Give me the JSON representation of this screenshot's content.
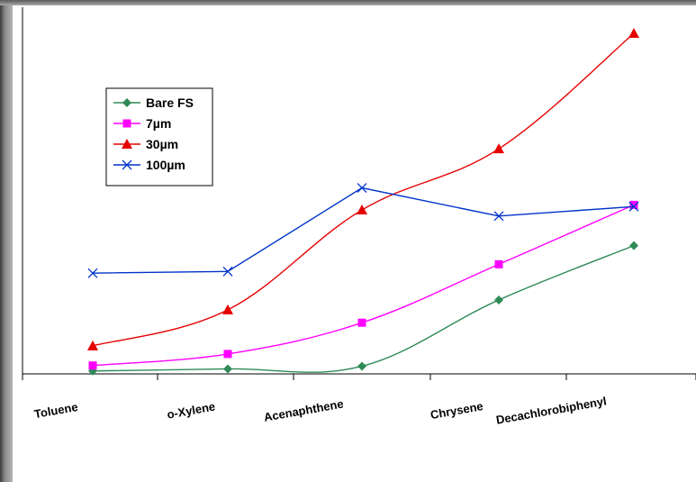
{
  "chart_data": {
    "type": "line",
    "categories": [
      "Toluene",
      "o-Xylene",
      "Acenaphthene",
      "Chrysene",
      "Decachlorobiphenyl"
    ],
    "series": [
      {
        "name": "Bare FS",
        "color": "#2e8b57",
        "marker": "diamond",
        "values": [
          0.6,
          1.2,
          2.0,
          21.5,
          37.5
        ]
      },
      {
        "name": "7µm",
        "color": "#ff00ff",
        "marker": "square",
        "values": [
          2.2,
          5.6,
          14.8,
          32.0,
          49.5
        ]
      },
      {
        "name": "30µm",
        "color": "#e60000",
        "marker": "triangle",
        "values": [
          8.0,
          18.6,
          48.0,
          66.0,
          100.0
        ]
      },
      {
        "name": "100µm",
        "color": "#0033cc",
        "marker": "x",
        "values": [
          29.4,
          29.9,
          54.5,
          46.2,
          49.0
        ]
      }
    ],
    "ylim": [
      0,
      100
    ],
    "grid": false,
    "legend_position": "upper-left"
  }
}
